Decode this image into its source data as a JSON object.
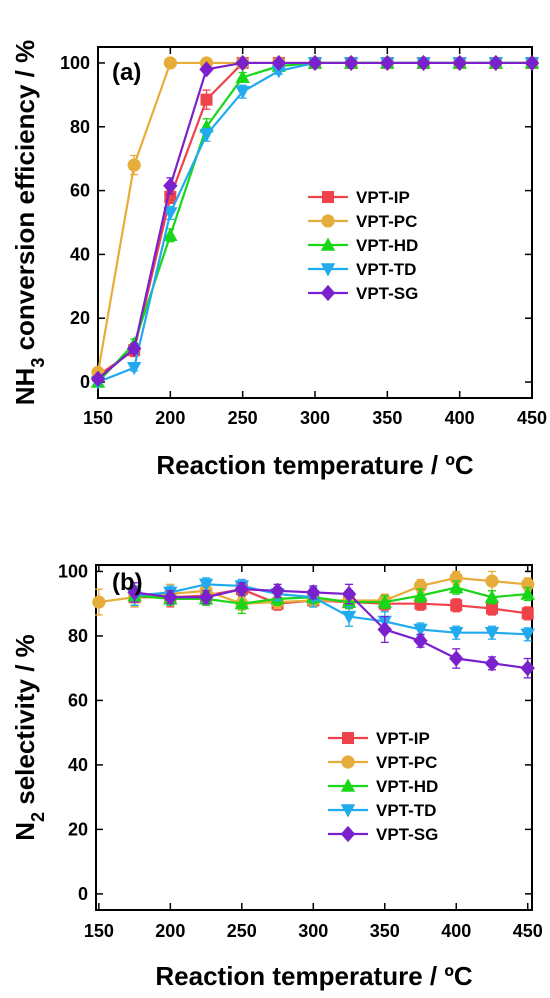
{
  "colors": {
    "VPT-IP": "#f0424a",
    "VPT-PC": "#e7ad3a",
    "VPT-HD": "#19d619",
    "VPT-TD": "#22aaee",
    "VPT-SG": "#7a20cc"
  },
  "chart_data": [
    {
      "type": "line",
      "panel_label": "(a)",
      "xlabel": "Reaction temperature / ºC",
      "ylabel_parts": [
        "NH",
        "3",
        " conversion efficiency / %"
      ],
      "xlim": [
        150,
        450
      ],
      "ylim": [
        -5,
        105
      ],
      "xticks": [
        150,
        200,
        250,
        300,
        350,
        400,
        450
      ],
      "yticks": [
        0,
        20,
        40,
        60,
        80,
        100
      ],
      "grid": false,
      "legend_position": "center-right",
      "x": [
        150,
        175,
        200,
        225,
        250,
        275,
        300,
        325,
        350,
        375,
        400,
        425,
        450
      ],
      "series": [
        {
          "name": "VPT-IP",
          "marker": "square",
          "values": [
            2,
            10,
            58,
            88.5,
            100,
            100,
            100,
            100,
            100,
            100,
            100,
            100,
            100
          ],
          "errors": [
            0.5,
            2,
            2,
            3,
            0,
            0,
            0,
            0,
            0,
            0,
            0,
            0,
            0
          ]
        },
        {
          "name": "VPT-PC",
          "marker": "circle",
          "values": [
            3,
            68,
            100,
            100,
            100,
            100,
            100,
            100,
            100,
            100,
            100,
            100,
            100
          ],
          "errors": [
            0.5,
            3,
            0,
            0,
            0,
            0,
            0,
            0,
            0,
            0,
            0,
            0,
            0
          ]
        },
        {
          "name": "VPT-HD",
          "marker": "triangle-up",
          "values": [
            0,
            12,
            46,
            80,
            95.5,
            99,
            100,
            100,
            100,
            100,
            100,
            100,
            100
          ],
          "errors": [
            0.5,
            1.5,
            2,
            2.5,
            1.5,
            0.5,
            0,
            0,
            0,
            0,
            0,
            0,
            0
          ]
        },
        {
          "name": "VPT-TD",
          "marker": "triangle-down",
          "values": [
            0,
            4.5,
            53,
            77.5,
            91,
            97.5,
            100,
            100,
            100,
            100,
            100,
            100,
            100
          ],
          "errors": [
            0.5,
            1,
            2,
            2,
            2,
            1,
            0,
            0,
            0,
            0,
            0,
            0,
            0
          ]
        },
        {
          "name": "VPT-SG",
          "marker": "diamond",
          "values": [
            1,
            10.5,
            61.5,
            98,
            100,
            100,
            100,
            100,
            100,
            100,
            100,
            100,
            100
          ],
          "errors": [
            0.5,
            1.5,
            2.5,
            1,
            0,
            0,
            0,
            0,
            0,
            0,
            0,
            0,
            0
          ]
        }
      ]
    },
    {
      "type": "line",
      "panel_label": "(b)",
      "xlabel": "Reaction temperature / ºC",
      "ylabel_parts": [
        "N",
        "2",
        " selectivity / %"
      ],
      "xlim": [
        148,
        453
      ],
      "ylim": [
        -5,
        102
      ],
      "xticks": [
        150,
        200,
        250,
        300,
        350,
        400,
        450
      ],
      "yticks": [
        0,
        20,
        40,
        60,
        80,
        100
      ],
      "grid": false,
      "legend_position": "lower-right",
      "x": [
        150,
        175,
        200,
        225,
        250,
        275,
        300,
        325,
        350,
        375,
        400,
        425,
        450
      ],
      "series": [
        {
          "name": "VPT-IP",
          "marker": "square",
          "values": [
            null,
            92,
            92,
            92.5,
            94.5,
            90,
            91,
            90.5,
            90,
            90,
            89.5,
            88.5,
            87
          ],
          "errors": [
            0,
            3,
            3,
            2,
            2,
            2,
            2,
            2,
            2,
            2,
            2,
            2,
            2
          ]
        },
        {
          "name": "VPT-PC",
          "marker": "circle",
          "values": [
            90.5,
            92,
            93,
            94,
            90,
            90.5,
            91,
            91,
            91,
            95.5,
            98,
            97,
            96
          ],
          "errors": [
            4,
            3,
            3,
            2,
            2,
            2,
            2,
            2,
            2,
            2,
            2,
            3,
            2
          ]
        },
        {
          "name": "VPT-HD",
          "marker": "triangle-up",
          "values": [
            null,
            92.5,
            91.5,
            91.5,
            90,
            91.5,
            92,
            90.5,
            90.5,
            92.5,
            95,
            92,
            93
          ],
          "errors": [
            0,
            3,
            2,
            2,
            3,
            2,
            2,
            2,
            2,
            2,
            2,
            2,
            2
          ]
        },
        {
          "name": "VPT-TD",
          "marker": "triangle-down",
          "values": [
            null,
            92.5,
            93.5,
            96,
            95.5,
            93,
            92,
            86,
            84.5,
            82,
            81,
            81,
            80.5
          ],
          "errors": [
            0,
            3,
            2,
            2,
            2,
            2,
            3,
            3,
            3,
            2,
            2,
            2,
            2
          ]
        },
        {
          "name": "VPT-SG",
          "marker": "diamond",
          "values": [
            null,
            93.5,
            92,
            92,
            94.5,
            94,
            93.5,
            93,
            82,
            78.5,
            73,
            71.5,
            70
          ],
          "errors": [
            0,
            3,
            2,
            2,
            2,
            2,
            2,
            3,
            4,
            2,
            3,
            2,
            3
          ]
        }
      ]
    }
  ]
}
